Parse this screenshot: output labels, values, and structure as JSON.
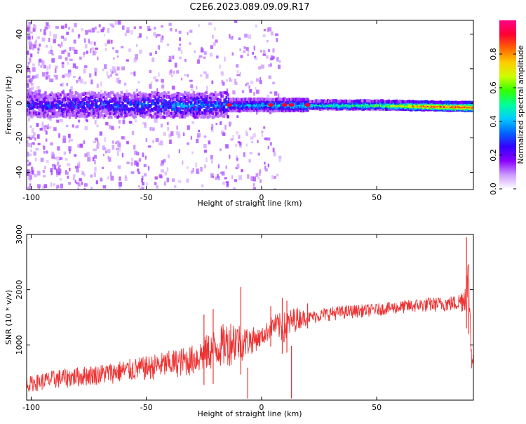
{
  "page_title": "C2E6.2023.089.09.09.R17",
  "chart_data": [
    {
      "type": "heatmap",
      "xlabel": "Height of straight line (km)",
      "ylabel": "Frequency (Hz)",
      "xlim": [
        -102,
        92
      ],
      "ylim": [
        -50,
        48
      ],
      "xticks": [
        -100,
        -50,
        0,
        50
      ],
      "yticks": [
        -40,
        -20,
        0,
        20,
        40
      ],
      "colorbar": {
        "label": "Normalized spectral amplitude",
        "range": [
          0,
          1
        ],
        "ticks": [
          0.0,
          0.2,
          0.4,
          0.6,
          0.8
        ],
        "colormap": [
          "#ffffff",
          "#cc99ff",
          "#8800ff",
          "#3300ff",
          "#0066ff",
          "#00ccff",
          "#00ff99",
          "#33ff00",
          "#ccff00",
          "#ffcc00",
          "#ff6600",
          "#ff0033",
          "#ff0088"
        ]
      },
      "band": {
        "center_hz": [
          {
            "x": -100,
            "y": -1
          },
          {
            "x": -50,
            "y": -1
          },
          {
            "x": 0,
            "y": -1
          },
          {
            "x": 50,
            "y": -1
          },
          {
            "x": 92,
            "y": -2
          }
        ],
        "amplitude": [
          {
            "x": -100,
            "v": 0.25
          },
          {
            "x": -50,
            "v": 0.3
          },
          {
            "x": -15,
            "v": 0.35
          },
          {
            "x": 0,
            "v": 0.4
          },
          {
            "x": 25,
            "v": 0.45
          },
          {
            "x": 50,
            "v": 0.55
          },
          {
            "x": 70,
            "v": 0.85
          },
          {
            "x": 90,
            "v": 0.9
          }
        ],
        "hot_spots": [
          {
            "x": -14,
            "y": -1
          },
          {
            "x": 4,
            "y": -1
          },
          {
            "x": 10,
            "y": -1
          },
          {
            "x": 13,
            "y": -1
          },
          {
            "x": 20,
            "y": -1
          }
        ]
      }
    },
    {
      "type": "line",
      "xlabel": "Height of straight line (km)",
      "ylabel": "SNR (10 * v/v)",
      "xlim": [
        -102,
        92
      ],
      "ylim": [
        0,
        3000
      ],
      "xticks": [
        -100,
        -50,
        0,
        50
      ],
      "yticks": [
        1000,
        2000,
        3000
      ],
      "series": [
        {
          "color": "#ee3333",
          "envelope": [
            {
              "x": -102,
              "low": 50,
              "high": 420
            },
            {
              "x": -90,
              "low": 80,
              "high": 550
            },
            {
              "x": -70,
              "low": 150,
              "high": 650
            },
            {
              "x": -50,
              "low": 200,
              "high": 800
            },
            {
              "x": -30,
              "low": 250,
              "high": 1000
            },
            {
              "x": -20,
              "low": 300,
              "high": 1300
            },
            {
              "x": -12,
              "low": 350,
              "high": 1500
            },
            {
              "x": -8,
              "low": 500,
              "high": 1350
            },
            {
              "x": 0,
              "low": 850,
              "high": 1300
            },
            {
              "x": 5,
              "low": 1000,
              "high": 1550
            },
            {
              "x": 10,
              "low": 800,
              "high": 1600
            },
            {
              "x": 15,
              "low": 1100,
              "high": 1700
            },
            {
              "x": 20,
              "low": 1300,
              "high": 1600
            },
            {
              "x": 30,
              "low": 1350,
              "high": 1700
            },
            {
              "x": 50,
              "low": 1450,
              "high": 1750
            },
            {
              "x": 70,
              "low": 1500,
              "high": 1850
            },
            {
              "x": 85,
              "low": 1500,
              "high": 1900
            },
            {
              "x": 88,
              "low": 1400,
              "high": 2100
            },
            {
              "x": 90,
              "low": 1200,
              "high": 2700
            },
            {
              "x": 91,
              "low": 400,
              "high": 1200
            },
            {
              "x": 92,
              "low": 200,
              "high": 1000
            }
          ],
          "spikes": [
            {
              "x": -25,
              "y": 1550
            },
            {
              "x": -21,
              "y": 1650
            },
            {
              "x": -9,
              "y": 2050
            },
            {
              "x": -6,
              "y": 30
            },
            {
              "x": 4,
              "y": 1700
            },
            {
              "x": 9,
              "y": 1850
            },
            {
              "x": 11,
              "y": 1800
            },
            {
              "x": 13,
              "y": 30
            },
            {
              "x": 20,
              "y": 1750
            },
            {
              "x": 89,
              "y": 2950
            },
            {
              "x": 90,
              "y": 2200
            }
          ]
        }
      ]
    }
  ]
}
